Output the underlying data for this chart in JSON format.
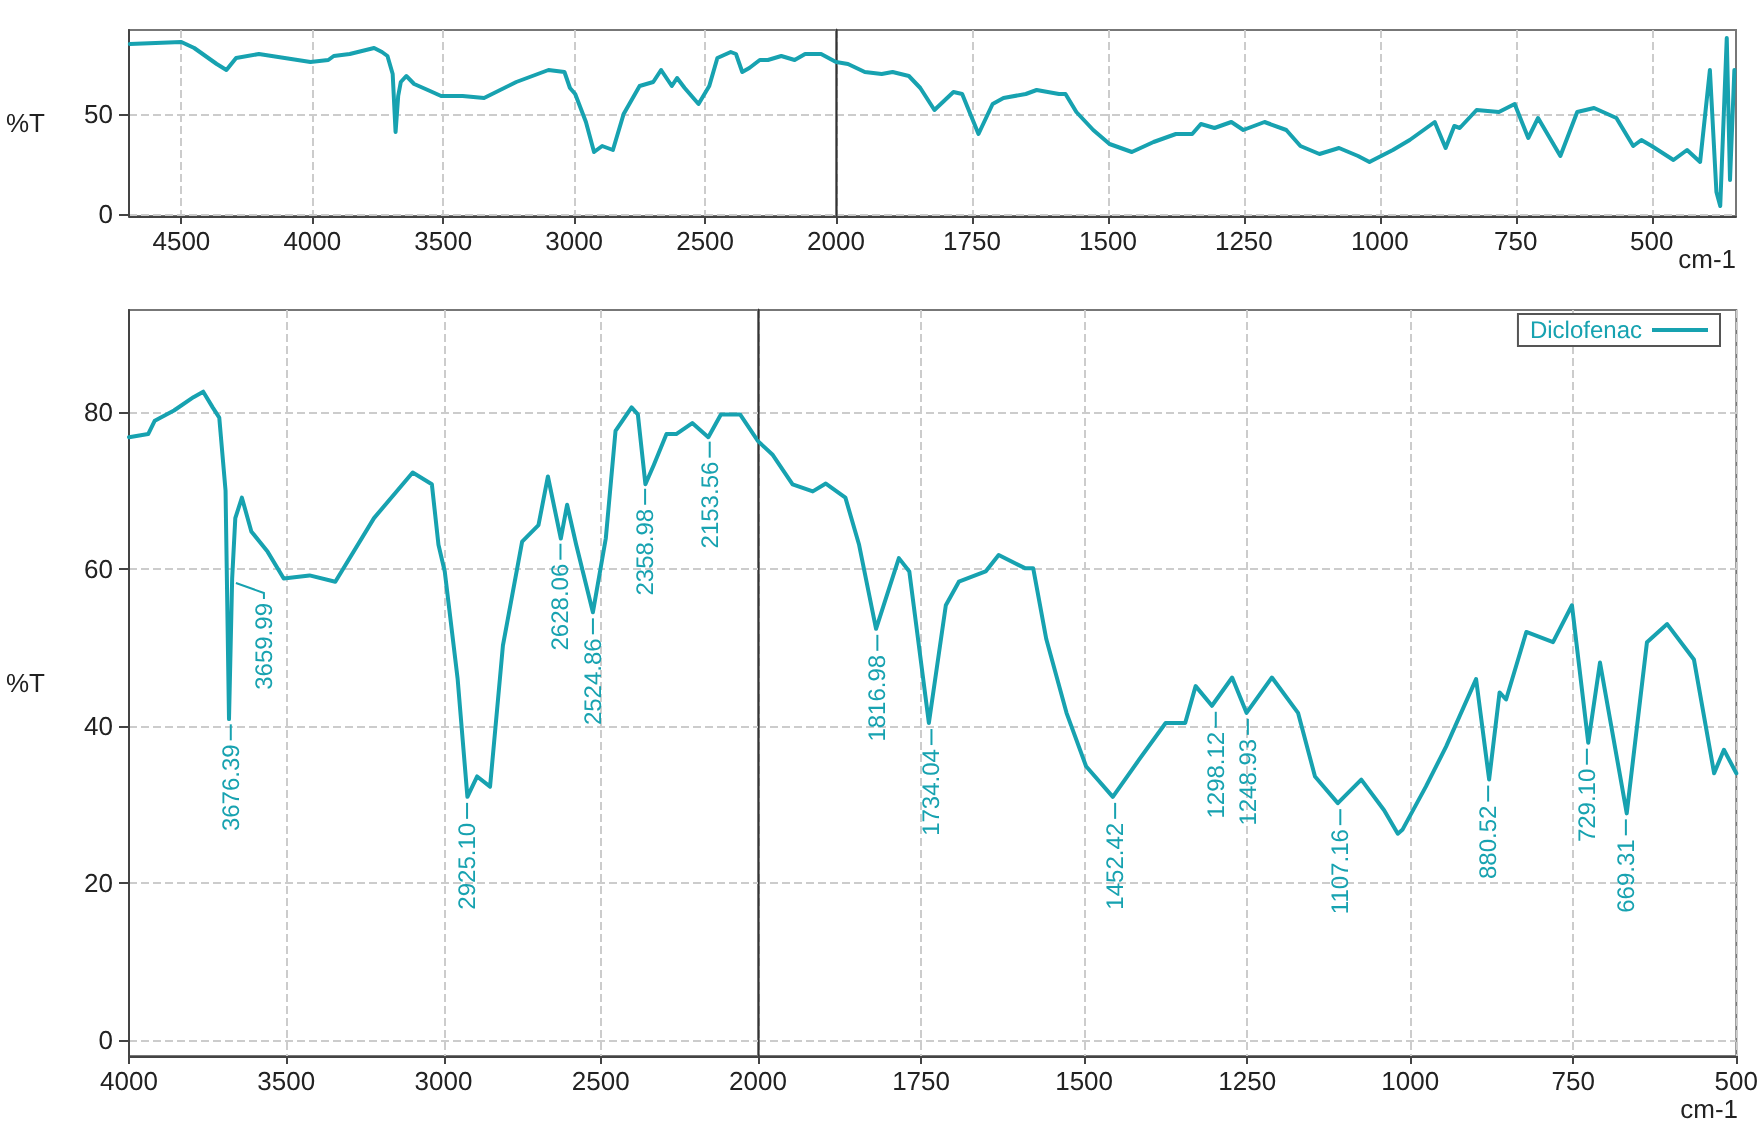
{
  "chart_data": [
    {
      "type": "line",
      "xlim": [
        4700,
        2000
      ],
      "xticks": [
        4500,
        4000,
        3500,
        3000,
        2500,
        2000
      ],
      "ylim": [
        -1,
        92
      ],
      "yticks": [
        0,
        50
      ],
      "ylabel": "%T",
      "grid": true,
      "marker": "none",
      "series": [
        {
          "color": "#17a2b0",
          "x": [
            4697,
            4500,
            4451,
            4365,
            4328,
            4291,
            4204,
            4007,
            3939,
            3918,
            3857,
            3795,
            3764,
            3734,
            3713,
            3693,
            3682,
            3672,
            3662,
            3641,
            3611,
            3559,
            3508,
            3426,
            3344,
            3221,
            3098,
            3037,
            3016,
            2996,
            2955,
            2924,
            2893,
            2852,
            2811,
            2750,
            2698,
            2668,
            2627,
            2607,
            2578,
            2525,
            2484,
            2453,
            2402,
            2382,
            2358,
            2331,
            2291,
            2260,
            2209,
            2158,
            2118,
            2057,
            2000
          ],
          "values": [
            85,
            86,
            83,
            75,
            72,
            78,
            80,
            76,
            77,
            79,
            80,
            82,
            83,
            81,
            79,
            70,
            41,
            59,
            66,
            69,
            65,
            62,
            59,
            59,
            58,
            66,
            72,
            71,
            63,
            60,
            46,
            31,
            34,
            32,
            50,
            64,
            66,
            72,
            64,
            68,
            63,
            55,
            64,
            78,
            81,
            80,
            71,
            73,
            77,
            77,
            79,
            77,
            80,
            80,
            76
          ]
        }
      ]
    },
    {
      "type": "line",
      "xlim": [
        2000,
        345
      ],
      "xticks": [
        1750,
        1500,
        1250,
        1000,
        750,
        500
      ],
      "ylim": [
        -1,
        92
      ],
      "yticks": [
        0,
        50
      ],
      "xlabel": "cm-1",
      "grid": true,
      "marker": "none",
      "tick_labels": "x",
      "series": [
        {
          "color": "#17a2b0",
          "x": [
            2000,
            1978,
            1947,
            1916,
            1896,
            1866,
            1845,
            1819,
            1784,
            1768,
            1738,
            1712,
            1692,
            1651,
            1631,
            1590,
            1578,
            1558,
            1527,
            1497,
            1456,
            1416,
            1375,
            1345,
            1329,
            1304,
            1273,
            1251,
            1212,
            1172,
            1146,
            1111,
            1075,
            1040,
            1019,
            1012,
            976,
            945,
            899,
            879,
            863,
            853,
            822,
            781,
            752,
            727,
            709,
            668,
            637,
            606,
            565,
            534,
            519,
            500,
            460,
            435,
            411,
            393,
            381,
            374,
            362,
            356,
            348
          ],
          "values": [
            76,
            75,
            71,
            70,
            71,
            69,
            63,
            52,
            61,
            60,
            40,
            55,
            58,
            60,
            62,
            60,
            60,
            51,
            42,
            35,
            31,
            36,
            40,
            40,
            45,
            43,
            46,
            42,
            46,
            42,
            34,
            30,
            33,
            29,
            26,
            27,
            32,
            37,
            46,
            33,
            44,
            43,
            52,
            51,
            55,
            38,
            48,
            29,
            51,
            53,
            48,
            34,
            37,
            34,
            27,
            32,
            26,
            72,
            11,
            4,
            88,
            17,
            72
          ]
        }
      ]
    },
    {
      "type": "line",
      "xlim": [
        4000,
        2000
      ],
      "xticks": [
        4000,
        3500,
        3000,
        2500,
        2000
      ],
      "ylim": [
        -2,
        93
      ],
      "yticks": [
        0,
        20,
        40,
        60,
        80
      ],
      "ylabel": "%T",
      "grid": true,
      "marker": "none",
      "annotations": [
        {
          "text": "3676.39",
          "x": 3676.39,
          "y": 41
        },
        {
          "text": "3659.99",
          "x": 3659.99,
          "y": 59
        },
        {
          "text": "2925.10",
          "x": 2925.1,
          "y": 31
        },
        {
          "text": "2628.06",
          "x": 2628.06,
          "y": 64
        },
        {
          "text": "2524.86",
          "x": 2524.86,
          "y": 54.5
        },
        {
          "text": "2358.98",
          "x": 2358.98,
          "y": 71
        },
        {
          "text": "2153.56",
          "x": 2153.56,
          "y": 77
        }
      ],
      "series": [
        {
          "color": "#17a2b0",
          "x": [
            4000,
            3939,
            3918,
            3857,
            3795,
            3764,
            3734,
            3713,
            3693,
            3682,
            3672,
            3662,
            3641,
            3611,
            3559,
            3508,
            3426,
            3344,
            3221,
            3098,
            3037,
            3016,
            2996,
            2955,
            2924,
            2893,
            2852,
            2811,
            2750,
            2698,
            2668,
            2627,
            2607,
            2578,
            2525,
            2484,
            2453,
            2402,
            2382,
            2358,
            2331,
            2291,
            2260,
            2209,
            2158,
            2118,
            2057,
            2000
          ],
          "values": [
            76.8,
            77.2,
            78.9,
            80.2,
            81.9,
            82.6,
            80.6,
            79.3,
            70,
            40.9,
            58.8,
            66.5,
            69.1,
            64.8,
            62.2,
            58.8,
            59.2,
            58.4,
            66.5,
            72.3,
            70.8,
            63.1,
            59.7,
            46,
            31,
            33.6,
            32.3,
            50.3,
            63.5,
            65.6,
            71.8,
            63.9,
            68.2,
            63.1,
            54.5,
            63.9,
            77.6,
            80.6,
            79.7,
            70.8,
            73.3,
            77.2,
            77.2,
            78.6,
            76.8,
            79.7,
            79.7,
            76.3
          ]
        }
      ]
    },
    {
      "type": "line",
      "xlim": [
        2000,
        500
      ],
      "xticks": [
        1750,
        1500,
        1250,
        1000,
        750,
        500
      ],
      "ylim": [
        -2,
        93
      ],
      "yticks": [
        0,
        20,
        40,
        60,
        80
      ],
      "xlabel": "cm-1",
      "grid": true,
      "marker": "none",
      "tick_labels": "x",
      "legend": "top right",
      "annotations": [
        {
          "text": "1816.98",
          "x": 1816.98,
          "y": 52.4
        },
        {
          "text": "1734.04",
          "x": 1734.04,
          "y": 40.4
        },
        {
          "text": "1452.42",
          "x": 1452.42,
          "y": 31
        },
        {
          "text": "1298.12",
          "x": 1298.12,
          "y": 42.6
        },
        {
          "text": "1248.93",
          "x": 1248.93,
          "y": 41.7
        },
        {
          "text": "1107.16",
          "x": 1107.16,
          "y": 30.2
        },
        {
          "text": "880.52",
          "x": 880.52,
          "y": 33.2
        },
        {
          "text": "729.10",
          "x": 729.1,
          "y": 37.9
        },
        {
          "text": "669.31",
          "x": 669.31,
          "y": 28.9
        }
      ],
      "series": [
        {
          "name": "Diclofenac",
          "color": "#17a2b0",
          "x": [
            2000,
            1978,
            1947,
            1916,
            1896,
            1866,
            1845,
            1819,
            1784,
            1768,
            1738,
            1712,
            1692,
            1651,
            1631,
            1590,
            1578,
            1558,
            1527,
            1497,
            1456,
            1416,
            1375,
            1345,
            1329,
            1304,
            1273,
            1251,
            1212,
            1172,
            1146,
            1111,
            1075,
            1040,
            1019,
            1012,
            976,
            945,
            899,
            879,
            863,
            853,
            822,
            781,
            752,
            727,
            709,
            668,
            637,
            606,
            565,
            534,
            519,
            500
          ],
          "values": [
            76.3,
            74.6,
            70.8,
            69.9,
            70.9,
            69.1,
            63.1,
            52.4,
            61.4,
            59.7,
            40.4,
            55.4,
            58.4,
            59.7,
            61.8,
            60.1,
            60.1,
            51.1,
            41.7,
            34.9,
            31,
            35.7,
            40.4,
            40.4,
            45.1,
            42.6,
            46.2,
            41.7,
            46.2,
            41.7,
            33.6,
            30.2,
            33.2,
            29.3,
            26.3,
            26.8,
            32.3,
            37.4,
            46,
            33.2,
            44.3,
            43.4,
            52,
            50.7,
            55.4,
            37.9,
            48.1,
            28.9,
            50.7,
            53,
            48.5,
            34,
            37,
            34
          ]
        }
      ]
    }
  ]
}
